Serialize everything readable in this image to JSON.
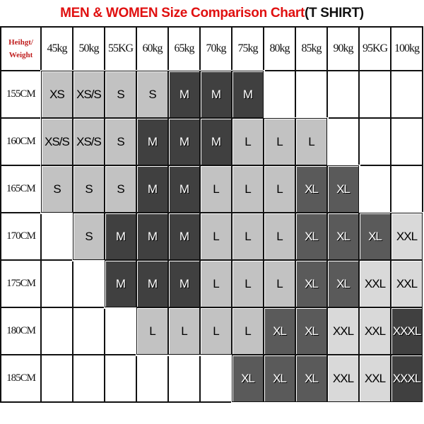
{
  "title": {
    "red": "MEN & WOMEN Size Comparison Chart",
    "black": "(T SHIRT)"
  },
  "chart_data": {
    "type": "table",
    "corner_label": [
      "Heihgt/",
      "Weight"
    ],
    "columns": [
      "45kg",
      "50kg",
      "55KG",
      "60kg",
      "65kg",
      "70kg",
      "75kg",
      "80kg",
      "85kg",
      "90kg",
      "95KG",
      "100kg"
    ],
    "rows": [
      {
        "height": "155CM",
        "sizes": [
          "XS",
          "XS/S",
          "S",
          "S",
          "M",
          "M",
          "M",
          "",
          "",
          "",
          "",
          ""
        ]
      },
      {
        "height": "160CM",
        "sizes": [
          "XS/S",
          "XS/S",
          "S",
          "M",
          "M",
          "M",
          "L",
          "L",
          "L",
          "",
          "",
          ""
        ]
      },
      {
        "height": "165CM",
        "sizes": [
          "S",
          "S",
          "S",
          "M",
          "M",
          "L",
          "L",
          "L",
          "XL",
          "XL",
          "",
          ""
        ]
      },
      {
        "height": "170CM",
        "sizes": [
          "",
          "S",
          "M",
          "M",
          "M",
          "L",
          "L",
          "L",
          "XL",
          "XL",
          "XL",
          "XXL"
        ]
      },
      {
        "height": "175CM",
        "sizes": [
          "",
          "",
          "M",
          "M",
          "M",
          "L",
          "L",
          "L",
          "XL",
          "XL",
          "XXL",
          "XXL"
        ]
      },
      {
        "height": "180CM",
        "sizes": [
          "",
          "",
          "",
          "L",
          "L",
          "L",
          "L",
          "XL",
          "XL",
          "XXL",
          "XXL",
          "XXXL"
        ]
      },
      {
        "height": "185CM",
        "sizes": [
          "",
          "",
          "",
          "",
          "",
          "",
          "XL",
          "XL",
          "XL",
          "XXL",
          "XXL",
          "XXXL"
        ]
      }
    ],
    "size_colors": {
      "XS": "#c2c2c2",
      "XS/S": "#c2c2c2",
      "S": "#c2c2c2",
      "M": "#404040",
      "L": "#c2c2c2",
      "XL": "#5a5a5a",
      "XXL": "#d9d9d9",
      "XXXL": "#404040"
    },
    "dark_sizes": [
      "M",
      "XL",
      "XXXL"
    ]
  }
}
